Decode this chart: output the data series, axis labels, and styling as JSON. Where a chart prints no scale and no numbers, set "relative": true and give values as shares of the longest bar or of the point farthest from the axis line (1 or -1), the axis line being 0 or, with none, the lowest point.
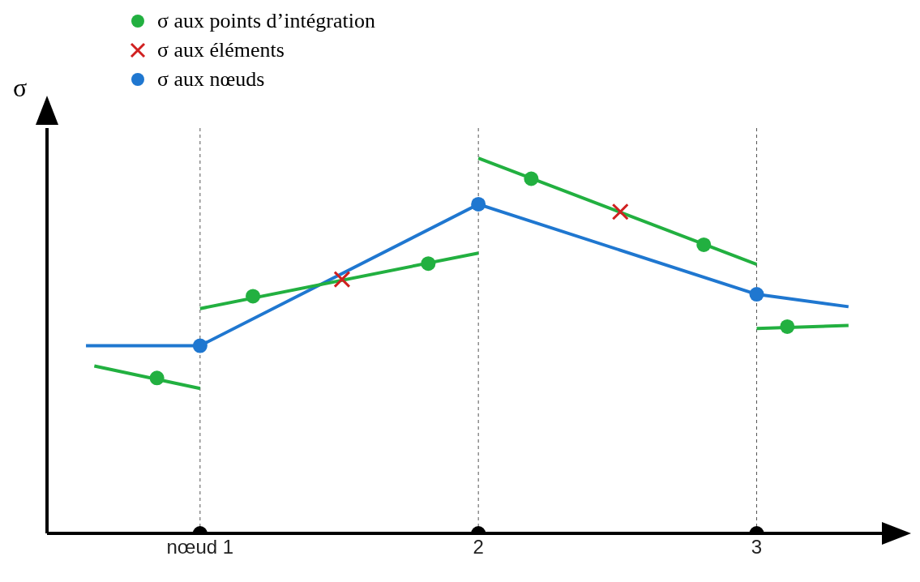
{
  "chart_data": {
    "type": "line",
    "relative": true,
    "ylabel": "σ",
    "legend": "top left",
    "grid": false,
    "xlim": [
      0.45,
      3.45
    ],
    "xticks": [
      {
        "value": 1,
        "label": "nœud 1"
      },
      {
        "value": 2,
        "label": "2"
      },
      {
        "value": 3,
        "label": "3"
      }
    ],
    "ref_lines": [
      {
        "axis": "x",
        "value": 1,
        "color": "#555555",
        "line_style": "dashed"
      },
      {
        "axis": "x",
        "value": 2,
        "color": "#555555",
        "line_style": "dashed"
      },
      {
        "axis": "x",
        "value": 3,
        "color": "#555555",
        "line_style": "dashed"
      }
    ],
    "series": [
      {
        "color": "#1f77d0",
        "x": [
          0.59,
          1,
          2,
          3,
          3.33
        ],
        "values": [
          0.5,
          0.5,
          0.877,
          0.637,
          0.604
        ],
        "marker": "none"
      },
      {
        "color": "#22b040",
        "x": [
          0.62,
          1
        ],
        "values": [
          0.446,
          0.386
        ],
        "marker": "none"
      },
      {
        "color": "#22b040",
        "x": [
          1,
          2
        ],
        "values": [
          0.599,
          0.747
        ],
        "marker": "none"
      },
      {
        "color": "#22b040",
        "x": [
          2,
          3
        ],
        "values": [
          1,
          0.717
        ],
        "marker": "none"
      },
      {
        "color": "#22b040",
        "x": [
          3,
          3.33
        ],
        "values": [
          0.546,
          0.554
        ],
        "marker": "none"
      },
      {
        "type": "scatter",
        "name": "σ aux points d’intégration",
        "color": "#22b040",
        "x": [
          0.845,
          1.19,
          1.82,
          2.19,
          2.81,
          3.11
        ],
        "values": [
          0.414,
          0.632,
          0.719,
          0.945,
          0.769,
          0.551
        ],
        "marker": "circle"
      },
      {
        "type": "scatter",
        "name": "σ aux éléments",
        "color": "#d02020",
        "x": [
          1.51,
          2.51
        ],
        "values": [
          0.677,
          0.857
        ],
        "marker": "cross"
      },
      {
        "type": "scatter",
        "name": "σ aux nœuds",
        "color": "#1f77d0",
        "x": [
          1,
          2,
          3
        ],
        "values": [
          0.5,
          0.877,
          0.637
        ],
        "marker": "circle"
      },
      {
        "type": "scatter",
        "color": "#000000",
        "x": [
          1,
          2,
          3
        ],
        "values": [
          0,
          0,
          0
        ],
        "marker": "circle"
      }
    ]
  }
}
